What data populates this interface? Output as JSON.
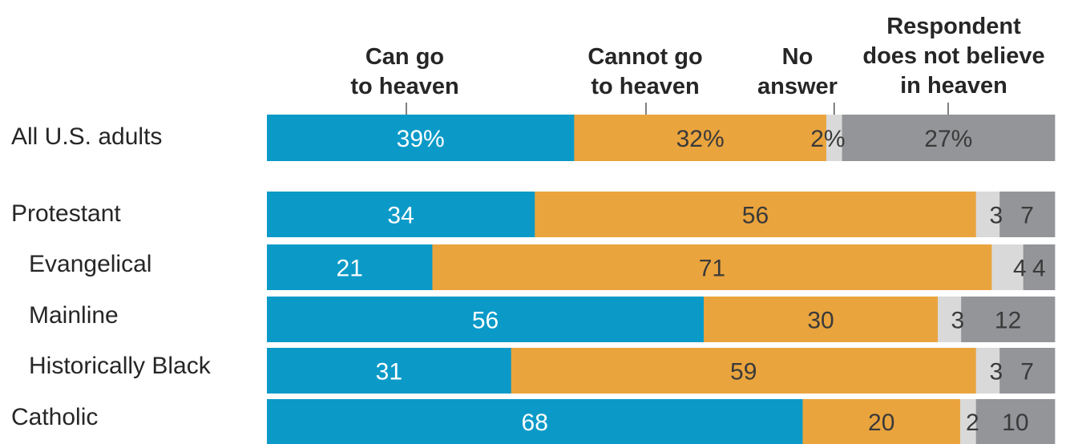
{
  "chart_data": {
    "type": "bar",
    "orientation": "horizontal",
    "stacked": true,
    "legend_placement": "top",
    "categories": [
      "All U.S. adults",
      "Protestant",
      "Evangelical",
      "Mainline",
      "Historically Black",
      "Catholic"
    ],
    "series": [
      {
        "name": "Can go to heaven",
        "color": "#0b9ac8",
        "values": [
          39,
          34,
          21,
          56,
          31,
          68
        ],
        "labels": [
          "39%",
          "34",
          "21",
          "56",
          "31",
          "68"
        ]
      },
      {
        "name": "Cannot go to heaven",
        "color": "#eaa43d",
        "values": [
          32,
          56,
          71,
          30,
          59,
          20
        ],
        "labels": [
          "32%",
          "56",
          "71",
          "30",
          "59",
          "20"
        ]
      },
      {
        "name": "No answer",
        "color": "#d9d9d9",
        "values": [
          2,
          3,
          4,
          3,
          3,
          2
        ],
        "labels": [
          "2%",
          "3",
          "4",
          "3",
          "3",
          "2"
        ]
      },
      {
        "name": "Respondent does not believe in heaven",
        "color": "#939598",
        "values": [
          27,
          7,
          4,
          12,
          7,
          10
        ],
        "labels": [
          "27%",
          "7",
          "4",
          "12",
          "7",
          "10"
        ]
      }
    ],
    "headers": [
      "Can go\nto heaven",
      "Cannot go\nto heaven",
      "No\nanswer",
      "Respondent\ndoes not believe\nin heaven"
    ],
    "xlim": [
      0,
      100
    ]
  }
}
